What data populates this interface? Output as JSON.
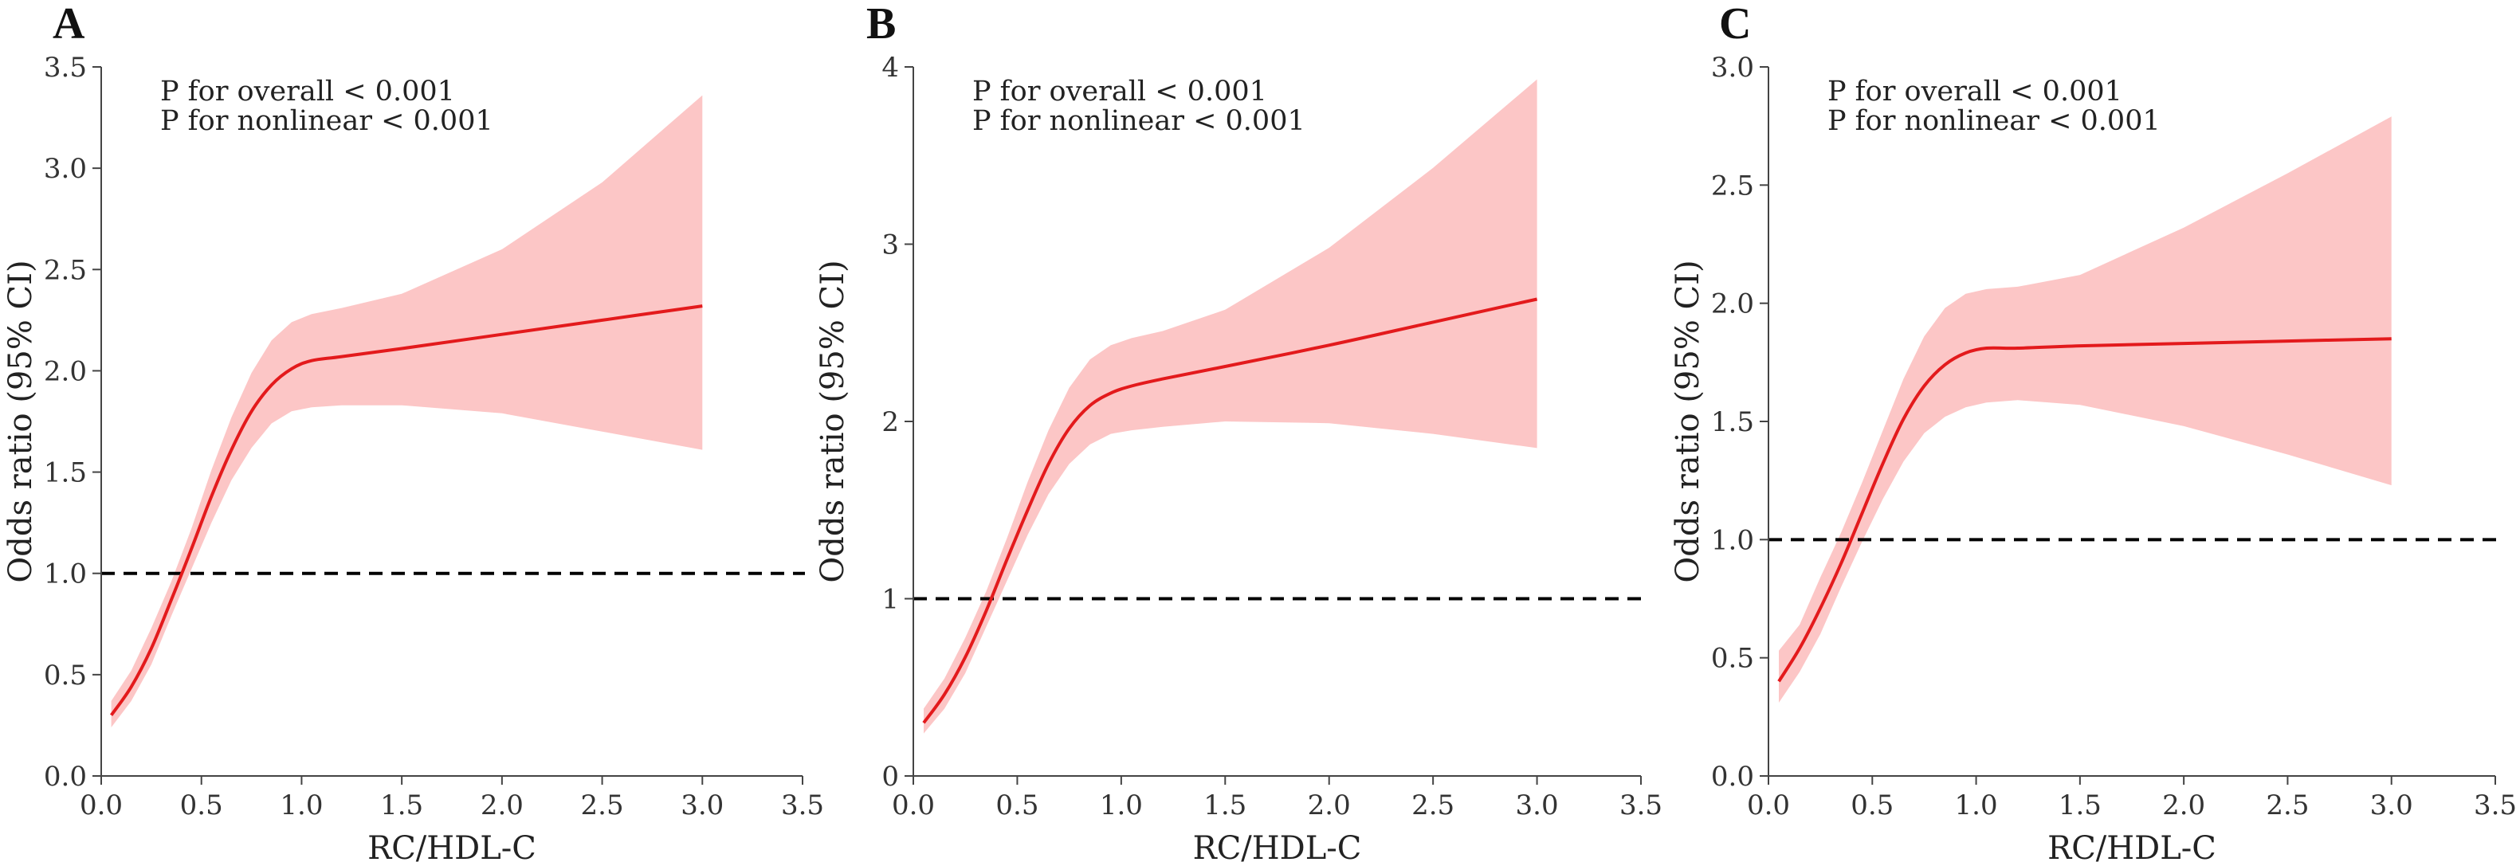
{
  "colors": {
    "curve": "#e31a1c",
    "ci_band": "#fcc6c6",
    "reference_line": "#000000",
    "axis": "#444444"
  },
  "chart_data": [
    {
      "panel": "A",
      "type": "line",
      "xlabel": "RC/HDL-C",
      "ylabel": "Odds ratio (95% CI)",
      "xlim": [
        0.0,
        3.5
      ],
      "ylim": [
        0.0,
        3.5
      ],
      "xticks": [
        0.0,
        0.5,
        1.0,
        1.5,
        2.0,
        2.5,
        3.0,
        3.5
      ],
      "yticks": [
        0.0,
        0.5,
        1.0,
        1.5,
        2.0,
        2.5,
        3.0,
        3.5
      ],
      "xtick_labels": [
        "0.0",
        "0.5",
        "1.0",
        "1.5",
        "2.0",
        "2.5",
        "3.0",
        "3.5"
      ],
      "ytick_labels": [
        "0.0",
        "0.5",
        "1.0",
        "1.5",
        "2.0",
        "2.5",
        "3.0",
        "3.5"
      ],
      "reference_y": 1.0,
      "annotations": [
        "P for overall < 0.001",
        "P for nonlinear < 0.001"
      ],
      "x": [
        0.05,
        0.15,
        0.25,
        0.35,
        0.45,
        0.55,
        0.65,
        0.75,
        0.85,
        0.95,
        1.05,
        1.2,
        1.5,
        2.0,
        2.5,
        3.0
      ],
      "or": [
        0.3,
        0.44,
        0.63,
        0.87,
        1.12,
        1.38,
        1.61,
        1.8,
        1.93,
        2.01,
        2.05,
        2.07,
        2.11,
        2.18,
        2.25,
        2.32
      ],
      "lower": [
        0.24,
        0.37,
        0.55,
        0.79,
        1.02,
        1.25,
        1.46,
        1.62,
        1.74,
        1.8,
        1.82,
        1.83,
        1.83,
        1.79,
        1.7,
        1.61
      ],
      "upper": [
        0.37,
        0.52,
        0.73,
        0.96,
        1.22,
        1.51,
        1.77,
        1.99,
        2.15,
        2.24,
        2.28,
        2.31,
        2.38,
        2.6,
        2.93,
        3.36
      ]
    },
    {
      "panel": "B",
      "type": "line",
      "xlabel": "RC/HDL-C",
      "ylabel": "Odds ratio (95% CI)",
      "xlim": [
        0.0,
        3.5
      ],
      "ylim": [
        0.0,
        4.0
      ],
      "xticks": [
        0.0,
        0.5,
        1.0,
        1.5,
        2.0,
        2.5,
        3.0,
        3.5
      ],
      "yticks": [
        0,
        1,
        2,
        3,
        4
      ],
      "xtick_labels": [
        "0.0",
        "0.5",
        "1.0",
        "1.5",
        "2.0",
        "2.5",
        "3.0",
        "3.5"
      ],
      "ytick_labels": [
        "0",
        "1",
        "2",
        "3",
        "4"
      ],
      "reference_y": 1.0,
      "annotations": [
        "P for overall < 0.001",
        "P for nonlinear < 0.001"
      ],
      "x": [
        0.05,
        0.15,
        0.25,
        0.35,
        0.45,
        0.55,
        0.65,
        0.75,
        0.85,
        0.95,
        1.05,
        1.2,
        1.5,
        2.0,
        2.5,
        3.0
      ],
      "or": [
        0.3,
        0.46,
        0.67,
        0.93,
        1.22,
        1.5,
        1.76,
        1.96,
        2.09,
        2.16,
        2.2,
        2.24,
        2.31,
        2.43,
        2.56,
        2.69
      ],
      "lower": [
        0.24,
        0.38,
        0.58,
        0.84,
        1.1,
        1.36,
        1.59,
        1.76,
        1.87,
        1.93,
        1.95,
        1.97,
        2.0,
        1.99,
        1.93,
        1.85
      ],
      "upper": [
        0.38,
        0.55,
        0.78,
        1.04,
        1.34,
        1.66,
        1.95,
        2.19,
        2.35,
        2.43,
        2.47,
        2.51,
        2.63,
        2.98,
        3.43,
        3.93
      ]
    },
    {
      "panel": "C",
      "type": "line",
      "xlabel": "RC/HDL-C",
      "ylabel": "Odds ratio (95% CI)",
      "xlim": [
        0.0,
        3.5
      ],
      "ylim": [
        0.0,
        3.0
      ],
      "xticks": [
        0.0,
        0.5,
        1.0,
        1.5,
        2.0,
        2.5,
        3.0,
        3.5
      ],
      "yticks": [
        0.0,
        0.5,
        1.0,
        1.5,
        2.0,
        2.5,
        3.0
      ],
      "xtick_labels": [
        "0.0",
        "0.5",
        "1.0",
        "1.5",
        "2.0",
        "2.5",
        "3.0",
        "3.5"
      ],
      "ytick_labels": [
        "0.0",
        "0.5",
        "1.0",
        "1.5",
        "2.0",
        "2.5",
        "3.0"
      ],
      "reference_y": 1.0,
      "annotations": [
        "P for overall < 0.001",
        "P for nonlinear < 0.001"
      ],
      "x": [
        0.05,
        0.15,
        0.25,
        0.35,
        0.45,
        0.55,
        0.65,
        0.75,
        0.85,
        0.95,
        1.05,
        1.2,
        1.5,
        2.0,
        2.5,
        3.0
      ],
      "or": [
        0.4,
        0.54,
        0.71,
        0.9,
        1.11,
        1.32,
        1.51,
        1.65,
        1.74,
        1.79,
        1.81,
        1.81,
        1.82,
        1.83,
        1.84,
        1.85
      ],
      "lower": [
        0.31,
        0.44,
        0.6,
        0.8,
        0.99,
        1.17,
        1.33,
        1.45,
        1.52,
        1.56,
        1.58,
        1.59,
        1.57,
        1.48,
        1.36,
        1.23
      ],
      "upper": [
        0.53,
        0.64,
        0.84,
        1.03,
        1.24,
        1.46,
        1.68,
        1.86,
        1.98,
        2.04,
        2.06,
        2.07,
        2.12,
        2.32,
        2.55,
        2.79
      ]
    }
  ]
}
